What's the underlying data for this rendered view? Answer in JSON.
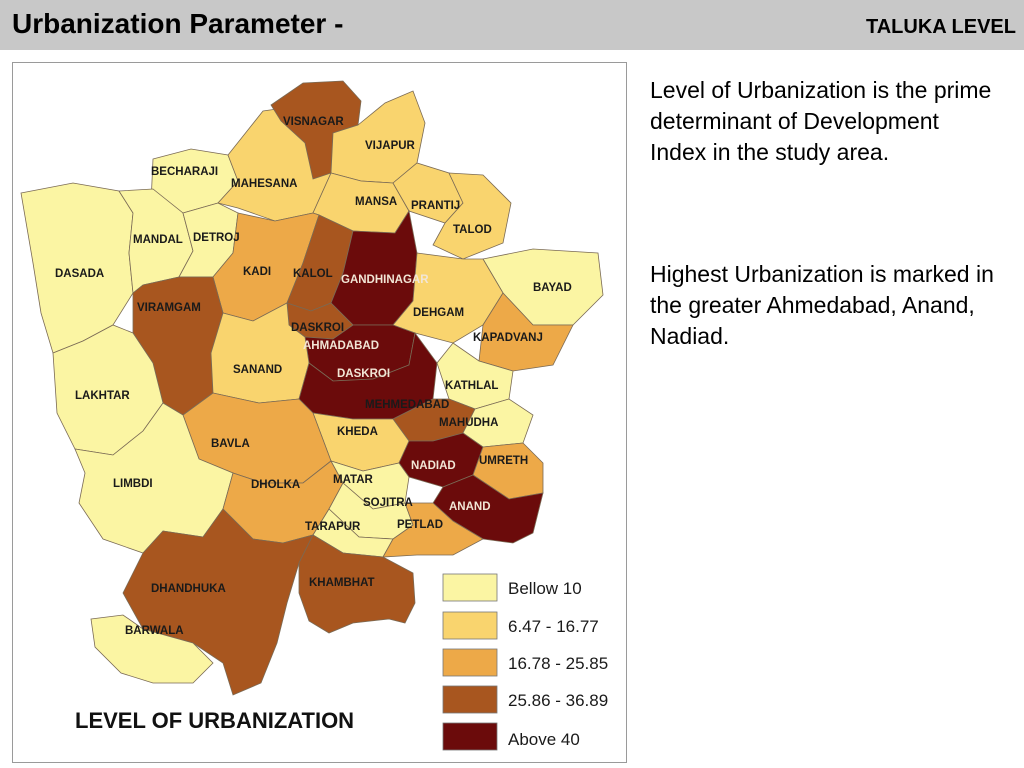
{
  "header": {
    "title": "Urbanization Parameter -",
    "right_label": "TALUKA LEVEL"
  },
  "description": {
    "para1": "Level of Urbanization is the prime determinant of Development Index in the study area.",
    "para2": "Highest Urbanization is marked in the greater Ahmedabad, Anand, Nadiad."
  },
  "map": {
    "title": "LEVEL OF URBANIZATION",
    "colors": {
      "class1": "#fbf5a3",
      "class2": "#f9d46e",
      "class3": "#eda948",
      "class4": "#a8561f",
      "class5": "#6b0b0b"
    },
    "legend": [
      {
        "label": "Bellow 10",
        "color_key": "class1"
      },
      {
        "label": "6.47 - 16.77",
        "color_key": "class2"
      },
      {
        "label": "16.78 - 25.85",
        "color_key": "class3"
      },
      {
        "label": "25.86 - 36.89",
        "color_key": "class4"
      },
      {
        "label": "Above 40",
        "color_key": "class5"
      }
    ],
    "talukas": {
      "visnagar": {
        "name": "VISNAGAR",
        "class": "class4"
      },
      "vijapur": {
        "name": "VIJAPUR",
        "class": "class2"
      },
      "becharaji": {
        "name": "BECHARAJI",
        "class": "class1"
      },
      "mahesana": {
        "name": "MAHESANA",
        "class": "class2"
      },
      "mansa": {
        "name": "MANSA",
        "class": "class2"
      },
      "prantij": {
        "name": "PRANTIJ",
        "class": "class2"
      },
      "talod": {
        "name": "TALOD",
        "class": "class2"
      },
      "mandal": {
        "name": "MANDAL",
        "class": "class1"
      },
      "detroj": {
        "name": "DETROJ",
        "class": "class1"
      },
      "kadi": {
        "name": "KADI",
        "class": "class3"
      },
      "kalol": {
        "name": "KALOL",
        "class": "class4"
      },
      "gandhinagar": {
        "name": "GANDHINAGAR",
        "class": "class5"
      },
      "dasada": {
        "name": "DASADA",
        "class": "class1"
      },
      "bayad": {
        "name": "BAYAD",
        "class": "class1"
      },
      "viramgam": {
        "name": "VIRAMGAM",
        "class": "class4"
      },
      "daskroi_n": {
        "name": "DASKROI",
        "class": "class4"
      },
      "dehgam": {
        "name": "DEHGAM",
        "class": "class2"
      },
      "kapadvanj": {
        "name": "KAPADVANJ",
        "class": "class3"
      },
      "ahmedabad": {
        "name": "AHMADABAD",
        "class": "class5"
      },
      "sanand": {
        "name": "SANAND",
        "class": "class2"
      },
      "daskroi_s": {
        "name": "DASKROI",
        "class": "class5"
      },
      "kathlal": {
        "name": "KATHLAL",
        "class": "class1"
      },
      "lakhtar": {
        "name": "LAKHTAR",
        "class": "class1"
      },
      "mehmedabad": {
        "name": "MEHMEDABAD",
        "class": "class4"
      },
      "mahudha": {
        "name": "MAHUDHA",
        "class": "class1"
      },
      "kheda": {
        "name": "KHEDA",
        "class": "class2"
      },
      "bavla": {
        "name": "BAVLA",
        "class": "class3"
      },
      "nadiad": {
        "name": "NADIAD",
        "class": "class5"
      },
      "umreth": {
        "name": "UMRETH",
        "class": "class3"
      },
      "limbdi": {
        "name": "LIMBDI",
        "class": "class1"
      },
      "dholka": {
        "name": "DHOLKA",
        "class": "class3"
      },
      "matar": {
        "name": "MATAR",
        "class": "class1"
      },
      "sojitra": {
        "name": "SOJITRA",
        "class": "class1"
      },
      "anand": {
        "name": "ANAND",
        "class": "class5"
      },
      "tarapur": {
        "name": "TARAPUR",
        "class": "class1"
      },
      "petlad": {
        "name": "PETLAD",
        "class": "class3"
      },
      "dhandhuka": {
        "name": "DHANDHUKA",
        "class": "class4"
      },
      "khambhat": {
        "name": "KHAMBHAT",
        "class": "class4"
      },
      "barwala": {
        "name": "BARWALA",
        "class": "class1"
      }
    }
  }
}
